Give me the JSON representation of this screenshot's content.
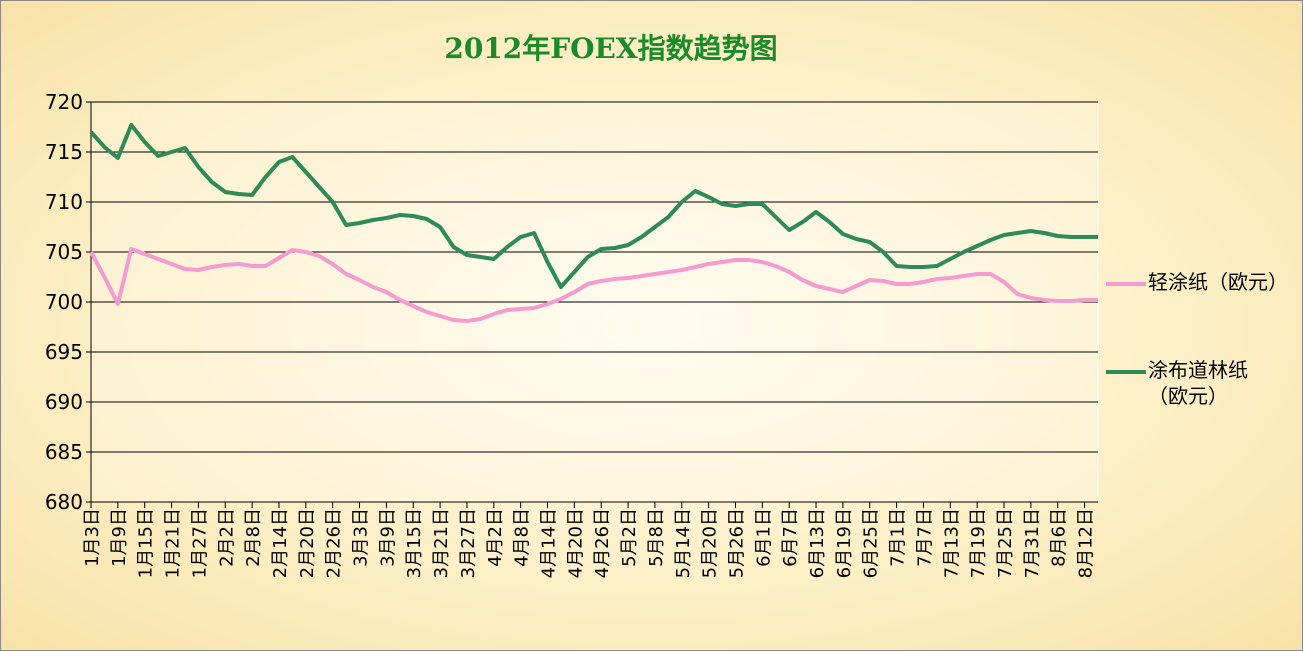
{
  "chart_data": {
    "type": "line",
    "title": "2012年FOEX指数趋势图",
    "categories": [
      "1月3日",
      null,
      "1月9日",
      null,
      "1月15日",
      null,
      "1月21日",
      null,
      "1月27日",
      null,
      "2月2日",
      null,
      "2月8日",
      null,
      "2月14日",
      null,
      "2月20日",
      null,
      "2月26日",
      null,
      "3月3日",
      null,
      "3月9日",
      null,
      "3月15日",
      null,
      "3月21日",
      null,
      "3月27日",
      null,
      "4月2日",
      null,
      "4月8日",
      null,
      "4月14日",
      null,
      "4月20日",
      null,
      "4月26日",
      null,
      "5月2日",
      null,
      "5月8日",
      null,
      "5月14日",
      null,
      "5月20日",
      null,
      "5月26日",
      null,
      "6月1日",
      null,
      "6月7日",
      null,
      "6月13日",
      null,
      "6月19日",
      null,
      "6月25日",
      null,
      "7月1日",
      null,
      "7月7日",
      null,
      "7月13日",
      null,
      "7月19日",
      null,
      "7月25日",
      null,
      "7月31日",
      null,
      "8月6日",
      null,
      "8月12日",
      null
    ],
    "series": [
      {
        "name": "轻涂纸（欧元）",
        "color": "#f59bd0",
        "values": [
          705,
          702.5,
          699.8,
          705.3,
          704.8,
          704.3,
          703.8,
          703.3,
          703.2,
          703.5,
          703.7,
          703.8,
          703.6,
          703.6,
          704.4,
          705.2,
          705,
          704.6,
          703.8,
          702.8,
          702.2,
          701.5,
          701,
          700.2,
          699.6,
          699,
          698.6,
          698.2,
          698.1,
          698.3,
          698.8,
          699.2,
          699.3,
          699.4,
          699.8,
          700.3,
          701,
          701.8,
          702.1,
          702.3,
          702.4,
          702.6,
          702.8,
          703,
          703.2,
          703.5,
          703.8,
          704,
          704.2,
          704.2,
          704,
          703.6,
          703,
          702.2,
          701.6,
          701.3,
          701,
          701.6,
          702.2,
          702.1,
          701.8,
          701.8,
          702,
          702.3,
          702.4,
          702.6,
          702.8,
          702.8,
          702,
          700.8,
          700.4,
          700.2,
          700.1,
          700.1,
          700.2,
          700.2
        ]
      },
      {
        "name": "涂布道林纸（欧元）",
        "color": "#2e8b57",
        "values": [
          717,
          715.5,
          714.4,
          717.7,
          716,
          714.6,
          715,
          715.4,
          713.5,
          712,
          711,
          710.8,
          710.7,
          712.5,
          714,
          714.5,
          713,
          711.5,
          710,
          707.7,
          707.9,
          708.2,
          708.4,
          708.7,
          708.6,
          708.3,
          707.5,
          705.5,
          704.7,
          704.5,
          704.3,
          705.5,
          706.5,
          706.9,
          704,
          701.5,
          703,
          704.5,
          705.3,
          705.4,
          705.7,
          706.5,
          707.5,
          708.5,
          710,
          711.1,
          710.5,
          709.8,
          709.6,
          709.8,
          709.8,
          708.5,
          707.2,
          708,
          709,
          708,
          706.8,
          706.3,
          706,
          705,
          703.6,
          703.5,
          703.5,
          703.6,
          704.3,
          705,
          705.6,
          706.2,
          706.7,
          706.9,
          707.1,
          706.9,
          706.6,
          706.5,
          706.5,
          706.5
        ]
      }
    ],
    "ylim": [
      680,
      720
    ],
    "yticks": [
      680,
      685,
      690,
      695,
      700,
      705,
      710,
      715,
      720
    ],
    "grid": true
  }
}
